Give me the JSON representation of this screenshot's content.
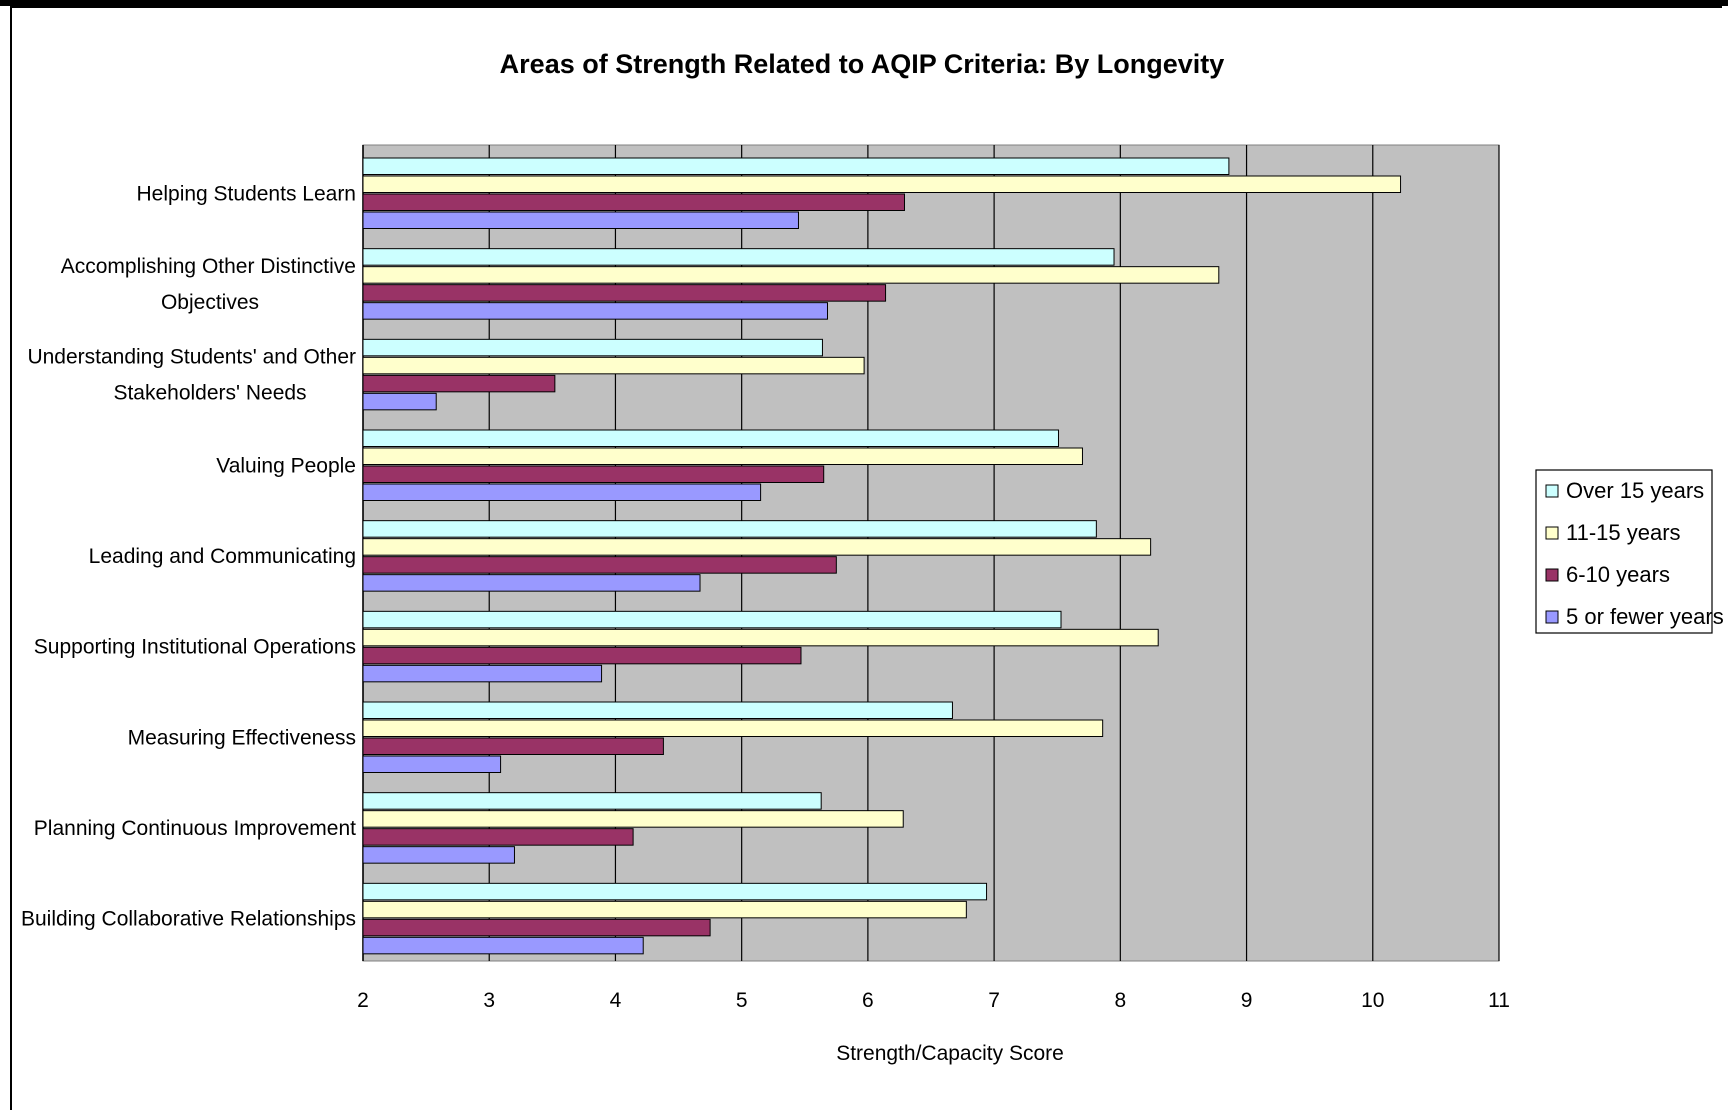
{
  "chart_data": {
    "type": "bar",
    "orientation": "horizontal",
    "title": "Areas of Strength Related to AQIP Criteria: By Longevity",
    "xlabel": "Strength/Capacity Score",
    "ylabel": "",
    "xlim": [
      2,
      11
    ],
    "x_ticks": [
      "2",
      "3",
      "4",
      "5",
      "6",
      "7",
      "8",
      "9",
      "10",
      "11"
    ],
    "grid": "vertical gridlines",
    "legend_position": "right",
    "categories": [
      [
        "Helping Students Learn"
      ],
      [
        "Accomplishing Other Distinctive",
        "Objectives"
      ],
      [
        "Understanding Students' and Other",
        "Stakeholders' Needs"
      ],
      [
        "Valuing People"
      ],
      [
        "Leading and Communicating"
      ],
      [
        "Supporting Institutional Operations"
      ],
      [
        "Measuring Effectiveness"
      ],
      [
        "Planning Continuous Improvement"
      ],
      [
        "Building Collaborative Relationships"
      ]
    ],
    "series": [
      {
        "name": "Over 15 years",
        "color": "#ccffff",
        "values": [
          8.86,
          7.95,
          5.64,
          7.51,
          7.81,
          7.53,
          6.67,
          5.63,
          6.94
        ]
      },
      {
        "name": "11-15 years",
        "color": "#ffffcc",
        "values": [
          10.22,
          8.78,
          5.97,
          7.7,
          8.24,
          8.3,
          7.86,
          6.28,
          6.78
        ]
      },
      {
        "name": "6-10 years",
        "color": "#993366",
        "values": [
          6.29,
          6.14,
          3.52,
          5.65,
          5.75,
          5.47,
          4.38,
          4.14,
          4.75
        ]
      },
      {
        "name": "5 or fewer years",
        "color": "#9999ff",
        "values": [
          5.45,
          5.68,
          2.58,
          5.15,
          4.67,
          3.89,
          3.09,
          3.2,
          4.22
        ]
      }
    ],
    "colors": {
      "plot_background": "#c0c0c0",
      "gridline": "#000000"
    }
  }
}
